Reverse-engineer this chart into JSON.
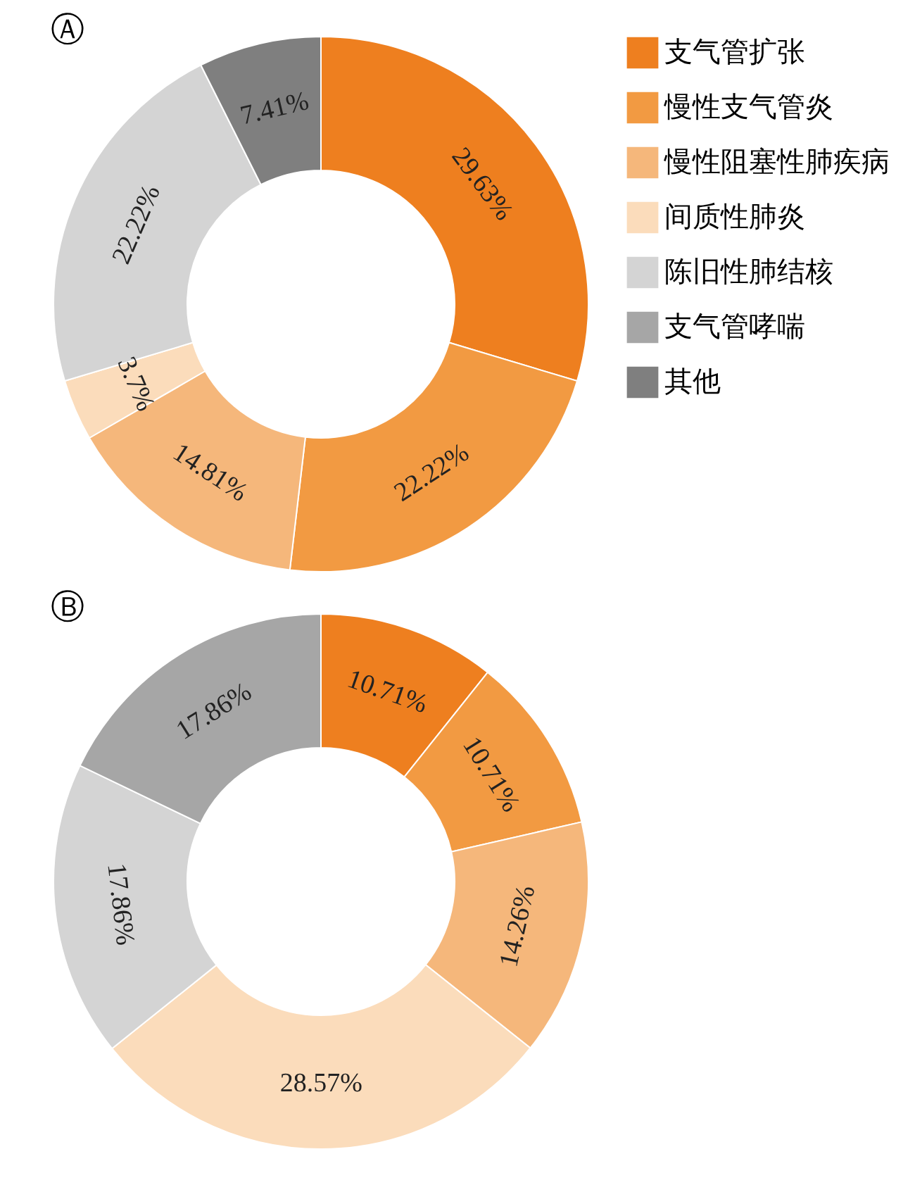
{
  "chart_data": [
    {
      "type": "donut",
      "title": "Ⓐ",
      "categories": [
        "支气管扩张",
        "慢性支气管炎",
        "慢性阻塞性肺疾病",
        "间质性肺炎",
        "陈旧性肺结核",
        "支气管哮喘",
        "其他"
      ],
      "values": [
        29.63,
        22.22,
        14.81,
        3.7,
        22.22,
        0,
        7.41
      ],
      "value_labels": [
        "29.63%",
        "22.22%",
        "14.81%",
        "3.7%",
        "22.22%",
        null,
        "7.41%"
      ],
      "colors": [
        "#ee7f1f",
        "#f29a42",
        "#f5b77b",
        "#fbdcbb",
        "#d4d4d4",
        "#a6a6a6",
        "#7f7f7f"
      ],
      "legend": "right"
    },
    {
      "type": "donut",
      "title": "Ⓑ",
      "categories": [
        null,
        null,
        null,
        null,
        null,
        null,
        null
      ],
      "values": [
        10.71,
        10.71,
        14.26,
        28.57,
        17.86,
        17.86,
        0
      ],
      "value_labels": [
        "10.71%",
        "10.71%",
        "14.26%",
        "28.57%",
        "17.86%",
        "17.86%",
        null
      ],
      "colors": [
        "#ee7f1f",
        "#f29a42",
        "#f5b77b",
        "#fbdcbb",
        "#d4d4d4",
        "#a6a6a6",
        "#7f7f7f"
      ],
      "legend": false
    }
  ]
}
